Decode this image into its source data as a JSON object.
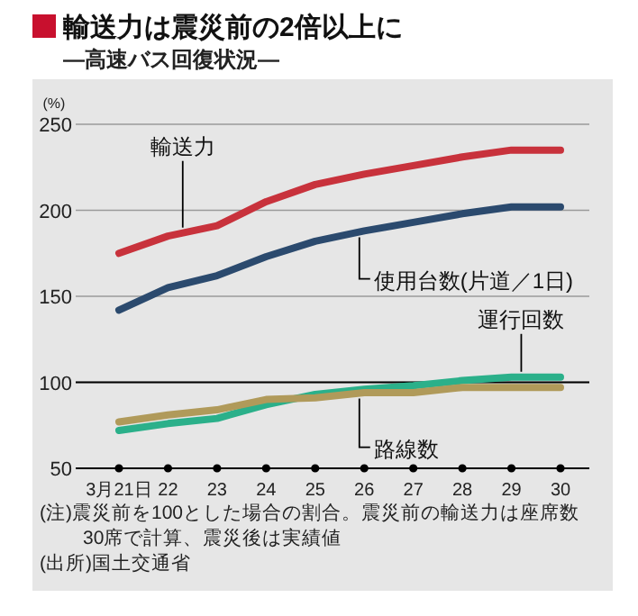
{
  "chart_data": {
    "type": "line",
    "title": "輸送力は震災前の2倍以上に",
    "subtitle": "―高速バス回復状況―",
    "ylabel": "(%)",
    "categories": [
      "3月21日",
      "22",
      "23",
      "24",
      "25",
      "26",
      "27",
      "28",
      "29",
      "30"
    ],
    "series": [
      {
        "name": "輸送力",
        "color": "#c8323c",
        "values": [
          175,
          185,
          191,
          205,
          215,
          221,
          226,
          231,
          235,
          235
        ]
      },
      {
        "name": "使用台数(片道／1日)",
        "color": "#2b4a6e",
        "values": [
          142,
          155,
          162,
          173,
          182,
          188,
          193,
          198,
          202,
          202
        ]
      },
      {
        "name": "運行回数",
        "color": "#2bb08a",
        "values": [
          72,
          76,
          79,
          87,
          93,
          96,
          98,
          101,
          103,
          103
        ]
      },
      {
        "name": "路線数",
        "color": "#b09a5a",
        "values": [
          77,
          81,
          84,
          90,
          91,
          94,
          94,
          97,
          97,
          97
        ]
      }
    ],
    "ylim": [
      50,
      250
    ],
    "yticks": [
      50,
      100,
      150,
      200,
      250
    ],
    "grid": "y",
    "ref_lines": [
      {
        "axis": "y",
        "value": 100,
        "color": "#000000"
      }
    ],
    "marker": "none",
    "line_style": "solid",
    "annotations": [
      "(注)震災前を100とした場合の割合。震災前の輸送力は座席数30席で計算、震災後は実績値",
      "(出所)国土交通省"
    ]
  }
}
